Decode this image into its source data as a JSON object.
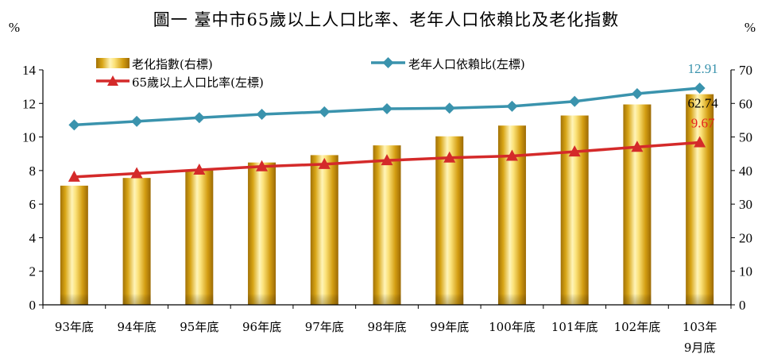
{
  "chart_data": {
    "type": "bar",
    "title": "圖一  臺中市65歲以上人口比率、老年人口依賴比及老化指數",
    "left_unit": "%",
    "right_unit": "%",
    "categories": [
      [
        "93年底"
      ],
      [
        "94年底"
      ],
      [
        "95年底"
      ],
      [
        "96年底"
      ],
      [
        "97年底"
      ],
      [
        "98年底"
      ],
      [
        "99年底"
      ],
      [
        "100年底"
      ],
      [
        "101年底"
      ],
      [
        "102年底"
      ],
      [
        "103年",
        "9月底"
      ]
    ],
    "left_axis": {
      "min": 0,
      "max": 14,
      "ticks": [
        "0",
        "2",
        "4",
        "6",
        "8",
        "10",
        "12",
        "14"
      ]
    },
    "right_axis": {
      "min": 0,
      "max": 70,
      "ticks": [
        "0",
        "10",
        "20",
        "30",
        "40",
        "50",
        "60",
        "70"
      ]
    },
    "series": [
      {
        "name": "老化指數(右標)",
        "type": "bar",
        "axis": "right",
        "color": "#d4a017",
        "values": [
          35.5,
          37.8,
          40.3,
          42.4,
          44.6,
          47.5,
          50.2,
          53.4,
          56.4,
          59.7,
          62.74
        ],
        "last_label": "62.74",
        "label_color": "#000000"
      },
      {
        "name": "老年人口依賴比(左標)",
        "type": "line",
        "marker": "diamond",
        "axis": "left",
        "color": "#3a93ad",
        "values": [
          10.72,
          10.93,
          11.15,
          11.35,
          11.5,
          11.68,
          11.72,
          11.83,
          12.12,
          12.58,
          12.91
        ],
        "last_label": "12.91",
        "label_color": "#3a93ad"
      },
      {
        "name": "65歲以上人口比率(左標)",
        "type": "line",
        "marker": "triangle",
        "axis": "left",
        "color": "#d42a2a",
        "values": [
          7.62,
          7.83,
          8.04,
          8.24,
          8.38,
          8.6,
          8.76,
          8.87,
          9.12,
          9.4,
          9.67
        ],
        "last_label": "9.67",
        "label_color": "#e8241c"
      }
    ],
    "legend_position": "top",
    "grid": false
  }
}
